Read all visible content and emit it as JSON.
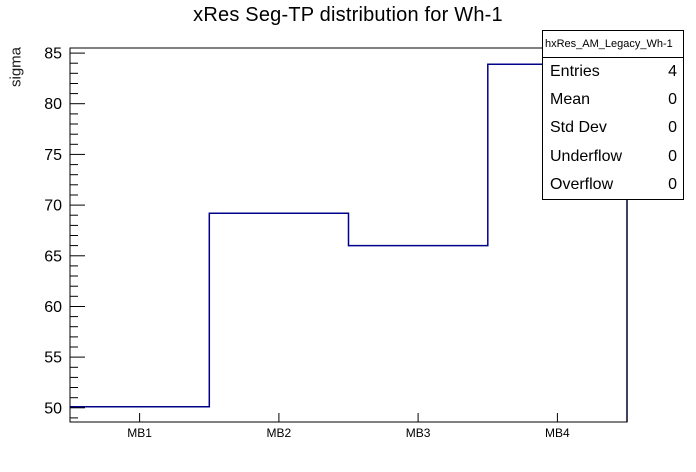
{
  "title": "xRes Seg-TP distribution for Wh-1",
  "chart_data": {
    "type": "line",
    "subtype": "root-step-histogram",
    "title": "xRes Seg-TP distribution for Wh-1",
    "categories": [
      "MB1",
      "MB2",
      "MB3",
      "MB4"
    ],
    "values": [
      50.1,
      69.2,
      66.0,
      83.9
    ],
    "xlabel": "",
    "ylabel": "sigma",
    "ylim": [
      48.6,
      85.5
    ],
    "y_major_ticks": [
      50,
      55,
      60,
      65,
      70,
      75,
      80,
      85
    ],
    "y_minor_tick_step": 1,
    "grid": false,
    "legend": false,
    "line_color": "#00008b",
    "frame_color": "#000000",
    "text_color": "#000000",
    "background_color": "#ffffff"
  },
  "stats_box": {
    "header": "hxRes_AM_Legacy_Wh-1",
    "rows": [
      {
        "label": "Entries",
        "value": "4"
      },
      {
        "label": "Mean",
        "value": "0"
      },
      {
        "label": "Std Dev",
        "value": "0"
      },
      {
        "label": "Underflow",
        "value": "0"
      },
      {
        "label": "Overflow",
        "value": "0"
      }
    ]
  }
}
